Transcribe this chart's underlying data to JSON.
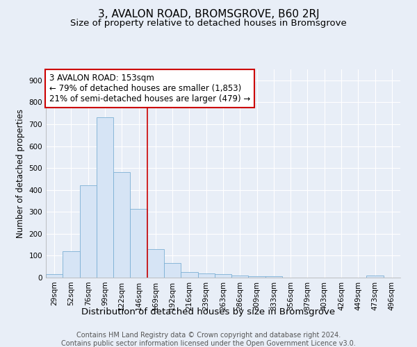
{
  "title1": "3, AVALON ROAD, BROMSGROVE, B60 2RJ",
  "title2": "Size of property relative to detached houses in Bromsgrove",
  "xlabel": "Distribution of detached houses by size in Bromsgrove",
  "ylabel": "Number of detached properties",
  "categories": [
    "29sqm",
    "52sqm",
    "76sqm",
    "99sqm",
    "122sqm",
    "146sqm",
    "169sqm",
    "192sqm",
    "216sqm",
    "239sqm",
    "263sqm",
    "286sqm",
    "309sqm",
    "333sqm",
    "356sqm",
    "379sqm",
    "403sqm",
    "426sqm",
    "449sqm",
    "473sqm",
    "496sqm"
  ],
  "bar_heights": [
    15,
    120,
    420,
    730,
    480,
    315,
    130,
    65,
    25,
    20,
    15,
    10,
    5,
    5,
    0,
    0,
    0,
    0,
    0,
    10,
    0
  ],
  "bar_color": "#d6e4f5",
  "bar_edge_color": "#7bafd4",
  "vline_x": 5.5,
  "vline_color": "#cc0000",
  "annotation_text": "3 AVALON ROAD: 153sqm\n← 79% of detached houses are smaller (1,853)\n21% of semi-detached houses are larger (479) →",
  "annotation_box_color": "#cc0000",
  "ylim": [
    0,
    950
  ],
  "yticks": [
    0,
    100,
    200,
    300,
    400,
    500,
    600,
    700,
    800,
    900
  ],
  "bg_color": "#e8eef7",
  "plot_bg_color": "#e8eef7",
  "footer1": "Contains HM Land Registry data © Crown copyright and database right 2024.",
  "footer2": "Contains public sector information licensed under the Open Government Licence v3.0.",
  "title1_fontsize": 11,
  "title2_fontsize": 9.5,
  "xlabel_fontsize": 9.5,
  "ylabel_fontsize": 8.5,
  "tick_fontsize": 7.5,
  "footer_fontsize": 7,
  "annotation_fontsize": 8.5
}
